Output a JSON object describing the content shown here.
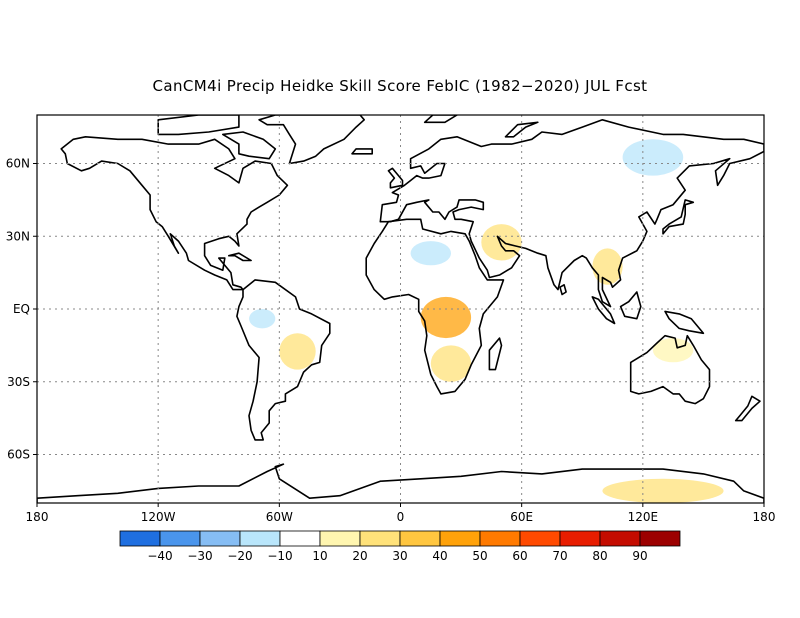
{
  "title": "CanCM4i Precip Heidke Skill Score FebIC (1982−2020) JUL Fcst",
  "map": {
    "projection": "equirectangular",
    "lon_range": [
      -180,
      180
    ],
    "lat_range": [
      -80,
      80
    ],
    "grid": "dotted",
    "lon_ticks": [
      {
        "lon": -180,
        "label": "180"
      },
      {
        "lon": -120,
        "label": "120W"
      },
      {
        "lon": -60,
        "label": "60W"
      },
      {
        "lon": 0,
        "label": "0"
      },
      {
        "lon": 60,
        "label": "60E"
      },
      {
        "lon": 120,
        "label": "120E"
      },
      {
        "lon": 180,
        "label": "180"
      }
    ],
    "lat_ticks": [
      {
        "lat": 60,
        "label": "60N"
      },
      {
        "lat": 30,
        "label": "30N"
      },
      {
        "lat": 0,
        "label": "EQ"
      },
      {
        "lat": -30,
        "label": "30S"
      },
      {
        "lat": -60,
        "label": "60S"
      }
    ]
  },
  "colorbar": {
    "labels": [
      "−40",
      "−30",
      "−20",
      "−10",
      "10",
      "20",
      "30",
      "40",
      "50",
      "60",
      "70",
      "80",
      "90"
    ],
    "colors": [
      "#1f6fe0",
      "#4a95ec",
      "#86bdf4",
      "#b9e6fb",
      "#ffffff",
      "#fff6b0",
      "#ffe27a",
      "#ffc640",
      "#ffa20a",
      "#ff7a00",
      "#ff4a00",
      "#e81d00",
      "#c40c00",
      "#9c0000"
    ]
  },
  "chart_data": {
    "type": "heatmap",
    "title": "CanCM4i Precip Heidke Skill Score FebIC (1982−2020) JUL Fcst",
    "xlabel": "",
    "ylabel": "",
    "lon_range": [
      -180,
      180
    ],
    "lat_range": [
      -80,
      80
    ],
    "color_levels": [
      -40,
      -30,
      -20,
      -10,
      10,
      20,
      30,
      40,
      50,
      60,
      70,
      80,
      90
    ],
    "regions": [
      {
        "name": "Central Africa",
        "lon": [
          10,
          35
        ],
        "lat": [
          -12,
          5
        ],
        "value": 45
      },
      {
        "name": "Southern Africa",
        "lon": [
          15,
          35
        ],
        "lat": [
          -30,
          -15
        ],
        "value": 20
      },
      {
        "name": "Arabia / Middle East",
        "lon": [
          40,
          60
        ],
        "lat": [
          20,
          35
        ],
        "value": 25
      },
      {
        "name": "Central Brazil",
        "lon": [
          -60,
          -42
        ],
        "lat": [
          -25,
          -10
        ],
        "value": 25
      },
      {
        "name": "Western Amazon",
        "lon": [
          -75,
          -62
        ],
        "lat": [
          -8,
          0
        ],
        "value": -15
      },
      {
        "name": "Sahara",
        "lon": [
          5,
          25
        ],
        "lat": [
          18,
          28
        ],
        "value": -15
      },
      {
        "name": "Eastern Siberia",
        "lon": [
          110,
          140
        ],
        "lat": [
          55,
          70
        ],
        "value": -15
      },
      {
        "name": "Antarctica (east)",
        "lon": [
          100,
          160
        ],
        "lat": [
          -80,
          -70
        ],
        "value": 20
      },
      {
        "name": "Indochina",
        "lon": [
          95,
          110
        ],
        "lat": [
          10,
          25
        ],
        "value": 25
      },
      {
        "name": "Australia north",
        "lon": [
          125,
          145
        ],
        "lat": [
          -22,
          -12
        ],
        "value": 15
      }
    ]
  }
}
